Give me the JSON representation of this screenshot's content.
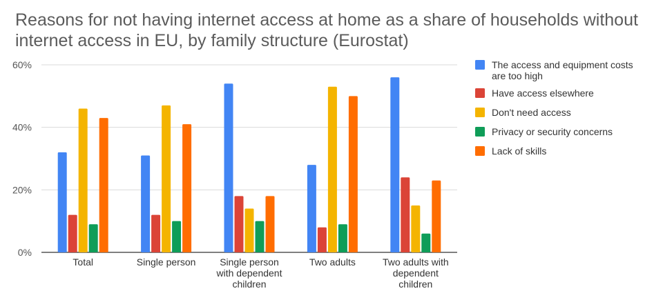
{
  "chart_data": {
    "type": "bar",
    "title": "Reasons for not having internet access at home as a share of households without internet access in EU, by family structure  (Eurostat)",
    "xlabel": "",
    "ylabel": "",
    "ylim": [
      0,
      60
    ],
    "yticks": [
      "0%",
      "20%",
      "40%",
      "60%"
    ],
    "ytick_values": [
      0,
      20,
      40,
      60
    ],
    "grid": true,
    "legend_position": "right",
    "categories": [
      [
        "Total"
      ],
      [
        "Single person"
      ],
      [
        "Single person",
        "with dependent",
        "children"
      ],
      [
        "Two adults"
      ],
      [
        "Two adults with",
        "dependent",
        "children"
      ]
    ],
    "series": [
      {
        "name": [
          "The access and equipment costs",
          "are too high"
        ],
        "color": "#4285F4",
        "values": [
          32,
          31,
          54,
          28,
          56
        ]
      },
      {
        "name": [
          "Have access elsewhere"
        ],
        "color": "#DB4437",
        "values": [
          12,
          12,
          18,
          8,
          24
        ]
      },
      {
        "name": [
          "Don't need access"
        ],
        "color": "#F4B400",
        "values": [
          46,
          47,
          14,
          53,
          15
        ]
      },
      {
        "name": [
          "Privacy or security concerns"
        ],
        "color": "#0F9D58",
        "values": [
          9,
          10,
          10,
          9,
          6
        ]
      },
      {
        "name": [
          "Lack of skills"
        ],
        "color": "#FF6D01",
        "values": [
          43,
          41,
          18,
          50,
          23
        ]
      }
    ]
  }
}
